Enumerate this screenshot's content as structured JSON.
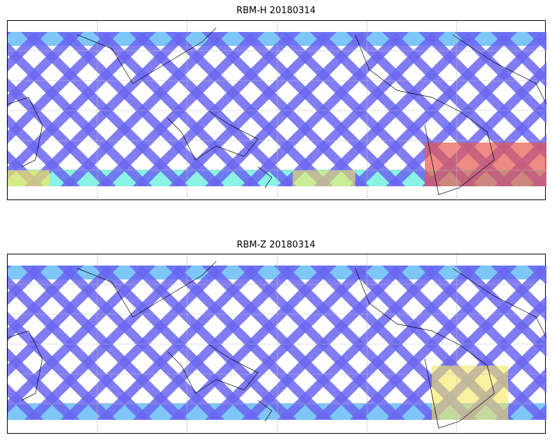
{
  "maps": [
    {
      "title": "RBM-H 20180314",
      "projection": "equirectangular",
      "coverage": "satellite tracks, mid/low latitudes",
      "colormap": "jet (alpha)",
      "hot_regions": [
        "south Atlantic / South America",
        "southern band"
      ]
    },
    {
      "title": "RBM-Z 20180314",
      "projection": "equirectangular",
      "coverage": "satellite tracks, mid/low latitudes",
      "colormap": "jet (alpha)",
      "hot_regions": [
        "south Atlantic / South America"
      ]
    }
  ],
  "colors": {
    "low": "#6a66f0",
    "mid": "#5cb8f5",
    "cyan": "#6ef0e0",
    "yellow": "#f5e860",
    "high": "#e85a50"
  }
}
